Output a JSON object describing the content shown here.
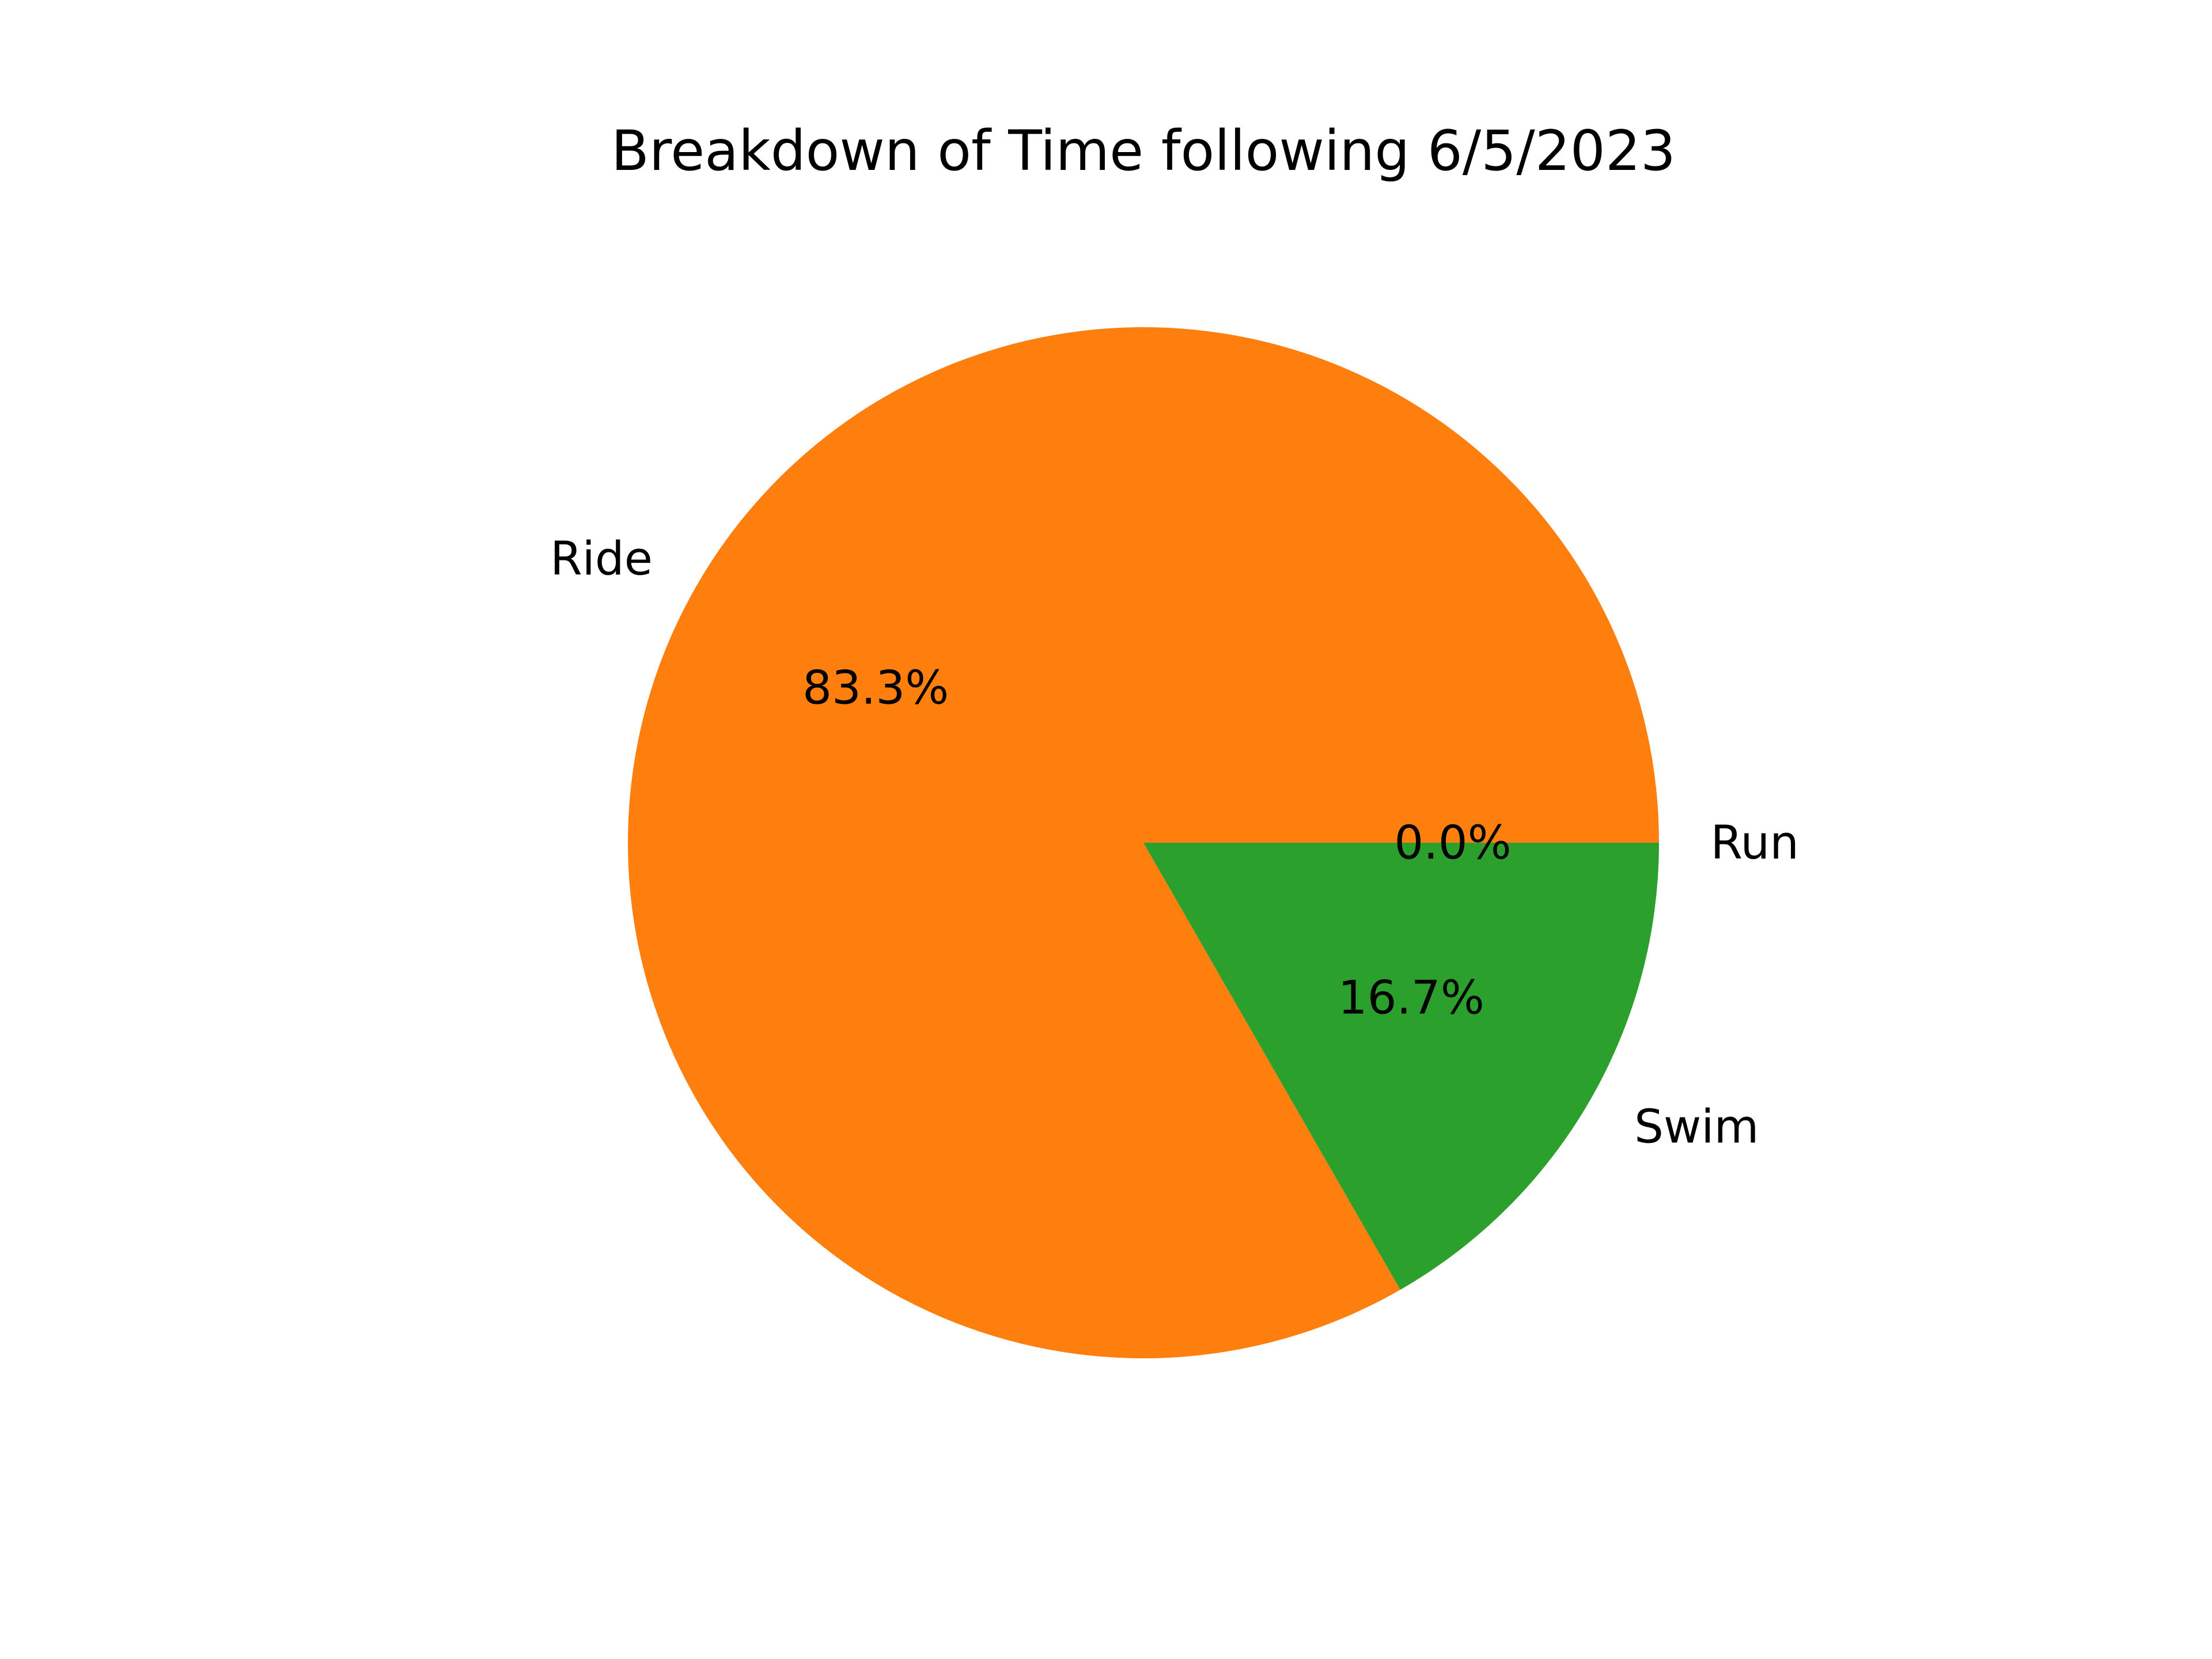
{
  "chart_data": {
    "type": "pie",
    "title": "Breakdown of Time following 6/5/2023",
    "slices": [
      {
        "label": "Run",
        "value": 0.0,
        "pct_label": "0.0%",
        "color": "#1f77b4"
      },
      {
        "label": "Ride",
        "value": 83.3,
        "pct_label": "83.3%",
        "color": "#ff7f0e"
      },
      {
        "label": "Swim",
        "value": 16.7,
        "pct_label": "16.7%",
        "color": "#2ca02c"
      }
    ],
    "start_angle_deg": 0,
    "direction": "counterclockwise",
    "legend": "none"
  }
}
